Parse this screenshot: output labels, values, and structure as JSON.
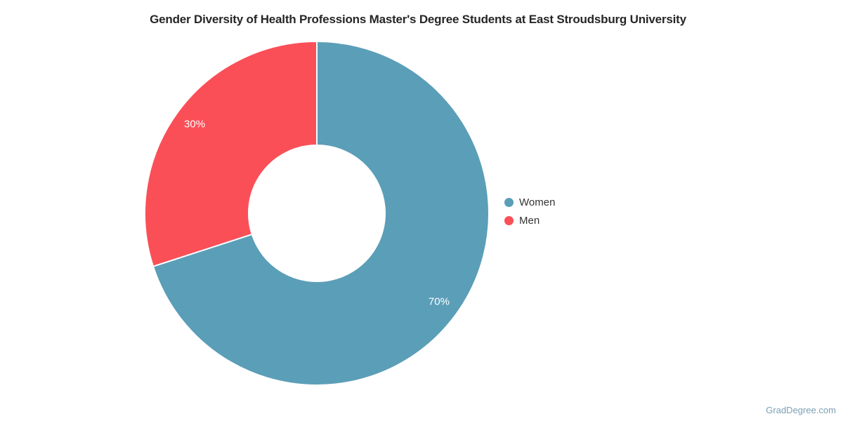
{
  "title": "Gender Diversity of Health Professions Master's Degree Students at East Stroudsburg University",
  "watermark": "GradDegree.com",
  "colors": {
    "women": "#5B9EB8",
    "men": "#FB4F58",
    "title_text": "#262626",
    "legend_text": "#333333",
    "slice_label_text": "#ffffff",
    "watermark_text": "#7DA0B4",
    "background": "#ffffff",
    "slice_border": "#ffffff"
  },
  "chart_data": {
    "type": "pie",
    "subtype": "donut",
    "title": "Gender Diversity of Health Professions Master's Degree Students at East Stroudsburg University",
    "categories": [
      "Women",
      "Men"
    ],
    "values": [
      70,
      30
    ],
    "value_labels": [
      "70%",
      "30%"
    ],
    "colors": [
      "#5B9EB8",
      "#FB4F58"
    ],
    "start_angle_deg": 0,
    "direction": "clockwise",
    "inner_radius_ratio": 0.4,
    "grid": false,
    "legend_position": "right"
  },
  "legend": {
    "items": [
      {
        "label": "Women",
        "color": "#5B9EB8"
      },
      {
        "label": "Men",
        "color": "#FB4F58"
      }
    ]
  }
}
